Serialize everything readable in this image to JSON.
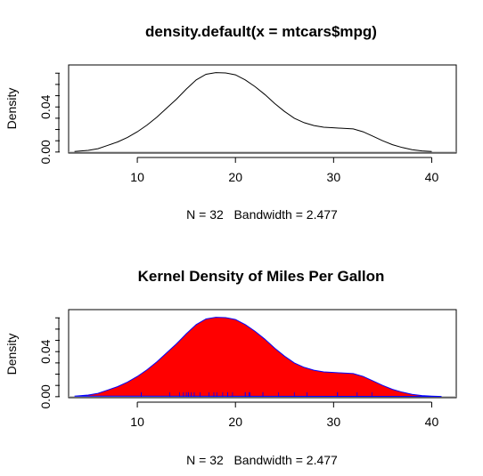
{
  "chart_data": [
    {
      "type": "line",
      "title": "density.default(x = mtcars$mpg)",
      "xlabel": "N = 32   Bandwidth = 2.477",
      "ylabel": "Density",
      "xlim": [
        3,
        42.5
      ],
      "ylim": [
        -0.0009,
        0.0773
      ],
      "x_ticks": [
        10,
        20,
        30,
        40
      ],
      "y_ticks": [
        0.0,
        0.04
      ],
      "y_tick_labels": [
        "0.00",
        "0.04"
      ],
      "y_minor_ticks": [
        0.0,
        0.01,
        0.02,
        0.03,
        0.04,
        0.05,
        0.06,
        0.07
      ],
      "line_color": "#000000",
      "baseline_color": "#b3b3b3",
      "series": [
        {
          "x": [
            3.6,
            5,
            6,
            7,
            8,
            9,
            10,
            11,
            12,
            13,
            14,
            15,
            16,
            17,
            18,
            19,
            20,
            21,
            22,
            23,
            24,
            25,
            26,
            27,
            28,
            29,
            30,
            31,
            32,
            33,
            34,
            35,
            36,
            37,
            38,
            39,
            40
          ],
          "y": [
            0.0005,
            0.0015,
            0.003,
            0.006,
            0.009,
            0.013,
            0.018,
            0.024,
            0.031,
            0.039,
            0.047,
            0.056,
            0.064,
            0.069,
            0.0705,
            0.0702,
            0.0685,
            0.064,
            0.058,
            0.051,
            0.043,
            0.036,
            0.03,
            0.026,
            0.0235,
            0.022,
            0.0215,
            0.021,
            0.0205,
            0.018,
            0.014,
            0.01,
            0.0065,
            0.004,
            0.002,
            0.001,
            0.0005
          ]
        }
      ]
    },
    {
      "type": "area",
      "title": "Kernel Density of Miles Per Gallon",
      "xlabel": "N = 32   Bandwidth = 2.477",
      "ylabel": "Density",
      "xlim": [
        3,
        42.5
      ],
      "ylim": [
        -0.0009,
        0.0773
      ],
      "x_ticks": [
        10,
        20,
        30,
        40
      ],
      "y_ticks": [
        0.0,
        0.04
      ],
      "y_tick_labels": [
        "0.00",
        "0.04"
      ],
      "y_minor_ticks": [
        0.0,
        0.01,
        0.02,
        0.03,
        0.04,
        0.05,
        0.06,
        0.07
      ],
      "fill_color": "#ff0000",
      "border_color": "#0000ff",
      "baseline_color": "#b3b3b3",
      "series": [
        {
          "x": [
            3.6,
            5,
            6,
            7,
            8,
            9,
            10,
            11,
            12,
            13,
            14,
            15,
            16,
            17,
            18,
            19,
            20,
            21,
            22,
            23,
            24,
            25,
            26,
            27,
            28,
            29,
            30,
            31,
            32,
            33,
            34,
            35,
            36,
            37,
            38,
            39,
            40,
            41
          ],
          "y": [
            0.0005,
            0.0015,
            0.003,
            0.006,
            0.009,
            0.013,
            0.018,
            0.024,
            0.031,
            0.039,
            0.047,
            0.056,
            0.064,
            0.069,
            0.0705,
            0.0702,
            0.0685,
            0.064,
            0.058,
            0.051,
            0.043,
            0.036,
            0.03,
            0.026,
            0.0235,
            0.022,
            0.0215,
            0.021,
            0.0205,
            0.018,
            0.014,
            0.01,
            0.0065,
            0.004,
            0.002,
            0.001,
            0.0005,
            0.0002
          ]
        }
      ],
      "rug": [
        21.0,
        21.0,
        22.8,
        21.4,
        18.7,
        18.1,
        14.3,
        24.4,
        22.8,
        19.2,
        17.8,
        16.4,
        17.3,
        15.2,
        10.4,
        10.4,
        14.7,
        32.4,
        30.4,
        33.9,
        21.5,
        15.5,
        15.2,
        13.3,
        19.2,
        27.3,
        26.0,
        30.4,
        15.8,
        19.7,
        15.0,
        21.4
      ]
    }
  ]
}
